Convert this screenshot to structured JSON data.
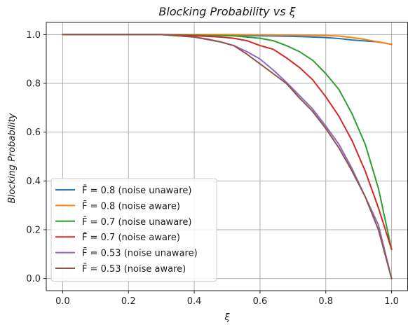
{
  "chart_data": {
    "type": "line",
    "title": "Blocking Probability vs ξ",
    "xlabel": "ξ",
    "ylabel": "Blocking Probability",
    "xlim": [
      -0.05,
      1.05
    ],
    "ylim": [
      -0.05,
      1.05
    ],
    "xticks": [
      0.0,
      0.2,
      0.4,
      0.6,
      0.8,
      1.0
    ],
    "xtick_labels": [
      "0.0",
      "0.2",
      "0.4",
      "0.6",
      "0.8",
      "1.0"
    ],
    "yticks": [
      0.0,
      0.2,
      0.4,
      0.6,
      0.8,
      1.0
    ],
    "ytick_labels": [
      "0.0",
      "0.2",
      "0.4",
      "0.6",
      "0.8",
      "1.0"
    ],
    "grid": true,
    "legend_position": "lower-left",
    "series": [
      {
        "name": "F̄ = 0.8 (noise unaware)",
        "color": "#1f77b4",
        "x": [
          0.0,
          0.1,
          0.2,
          0.3,
          0.4,
          0.5,
          0.6,
          0.7,
          0.76,
          0.8,
          0.84,
          0.88,
          0.92,
          0.96,
          1.0
        ],
        "y": [
          1.0,
          1.0,
          1.0,
          1.0,
          0.999,
          0.998,
          0.995,
          0.993,
          0.99,
          0.988,
          0.984,
          0.978,
          0.974,
          0.97,
          0.96
        ]
      },
      {
        "name": "F̄ = 0.8 (noise aware)",
        "color": "#ff7f0e",
        "x": [
          0.0,
          0.1,
          0.2,
          0.3,
          0.4,
          0.5,
          0.6,
          0.7,
          0.76,
          0.8,
          0.84,
          0.88,
          0.92,
          0.96,
          1.0
        ],
        "y": [
          1.0,
          1.0,
          1.0,
          1.0,
          1.0,
          1.0,
          0.999,
          0.998,
          0.997,
          0.996,
          0.994,
          0.988,
          0.98,
          0.97,
          0.96
        ]
      },
      {
        "name": "F̄ = 0.7 (noise unaware)",
        "color": "#2ca02c",
        "x": [
          0.0,
          0.1,
          0.2,
          0.3,
          0.4,
          0.44,
          0.48,
          0.52,
          0.56,
          0.6,
          0.64,
          0.68,
          0.72,
          0.76,
          0.8,
          0.84,
          0.88,
          0.92,
          0.96,
          1.0
        ],
        "y": [
          1.0,
          1.0,
          1.0,
          1.0,
          0.998,
          0.997,
          0.996,
          0.995,
          0.99,
          0.985,
          0.975,
          0.955,
          0.93,
          0.895,
          0.84,
          0.775,
          0.675,
          0.55,
          0.37,
          0.12
        ]
      },
      {
        "name": "F̄ = 0.7 (noise aware)",
        "color": "#d62728",
        "x": [
          0.0,
          0.1,
          0.2,
          0.3,
          0.4,
          0.44,
          0.48,
          0.52,
          0.56,
          0.6,
          0.64,
          0.68,
          0.72,
          0.76,
          0.8,
          0.84,
          0.88,
          0.92,
          0.96,
          1.0
        ],
        "y": [
          1.0,
          1.0,
          1.0,
          1.0,
          0.995,
          0.993,
          0.99,
          0.985,
          0.975,
          0.955,
          0.94,
          0.905,
          0.865,
          0.815,
          0.745,
          0.665,
          0.565,
          0.44,
          0.29,
          0.12
        ]
      },
      {
        "name": "F̄ = 0.53 (noise unaware)",
        "color": "#9467bd",
        "x": [
          0.0,
          0.1,
          0.2,
          0.3,
          0.4,
          0.44,
          0.48,
          0.52,
          0.56,
          0.6,
          0.64,
          0.68,
          0.72,
          0.76,
          0.8,
          0.84,
          0.88,
          0.92,
          0.96,
          1.0
        ],
        "y": [
          1.0,
          1.0,
          1.0,
          1.0,
          0.99,
          0.982,
          0.97,
          0.955,
          0.93,
          0.9,
          0.855,
          0.805,
          0.75,
          0.695,
          0.625,
          0.55,
          0.45,
          0.335,
          0.22,
          0.0
        ]
      },
      {
        "name": "F̄ = 0.53 (noise aware)",
        "color": "#8c564b",
        "x": [
          0.0,
          0.1,
          0.2,
          0.3,
          0.4,
          0.44,
          0.48,
          0.52,
          0.56,
          0.6,
          0.64,
          0.68,
          0.72,
          0.76,
          0.8,
          0.84,
          0.88,
          0.92,
          0.96,
          1.0
        ],
        "y": [
          1.0,
          1.0,
          1.0,
          1.0,
          0.99,
          0.98,
          0.97,
          0.955,
          0.92,
          0.88,
          0.84,
          0.8,
          0.74,
          0.685,
          0.615,
          0.535,
          0.44,
          0.335,
          0.2,
          0.0
        ]
      }
    ]
  }
}
